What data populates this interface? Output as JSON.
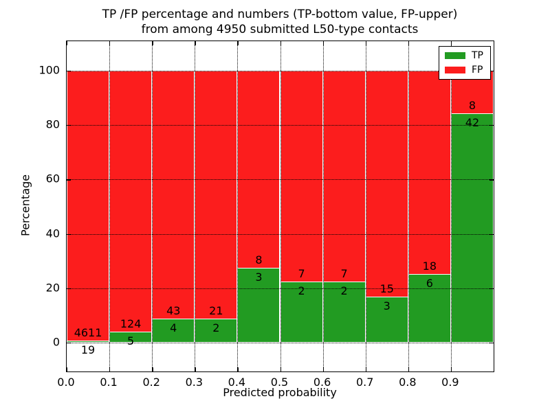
{
  "figure": {
    "title_line1": "TP /FP percentage and numbers (TP-bottom value, FP-upper)",
    "title_line2": "from among 4950 submitted L50-type contacts"
  },
  "chart_data": {
    "type": "bar",
    "stacked": true,
    "normalized_to": 100,
    "title": "TP /FP percentage and numbers (TP-bottom value, FP-upper) from among 4950 submitted L50-type contacts",
    "xlabel": "Predicted probability",
    "ylabel": "Percentage",
    "total_submitted": 4950,
    "bin_start": [
      0.0,
      0.1,
      0.2,
      0.3,
      0.4,
      0.5,
      0.6,
      0.7,
      0.8,
      0.9
    ],
    "bin_width": 0.1,
    "series": [
      {
        "name": "TP",
        "color": "#229b22",
        "counts": [
          19,
          5,
          4,
          2,
          3,
          2,
          2,
          3,
          6,
          42
        ]
      },
      {
        "name": "FP",
        "color": "#fc1d1d",
        "counts": [
          4611,
          124,
          43,
          21,
          8,
          7,
          7,
          15,
          18,
          8
        ]
      }
    ],
    "tp_percent_of_bin": [
      0.41,
      3.88,
      8.51,
      8.7,
      27.27,
      22.22,
      22.22,
      16.67,
      25.0,
      84.0
    ],
    "xticks": [
      "0.0",
      "0.1",
      "0.2",
      "0.3",
      "0.4",
      "0.5",
      "0.6",
      "0.7",
      "0.8",
      "0.9"
    ],
    "yticks": [
      "0",
      "20",
      "40",
      "60",
      "80",
      "100"
    ],
    "xlim": [
      0.0,
      1.0
    ],
    "ylim": [
      -10.6,
      110.8
    ],
    "grid": "dotted",
    "bar_edge_color": "#ffffff",
    "legend": {
      "position": "upper right",
      "entries": [
        {
          "label": "TP",
          "color": "#229b22"
        },
        {
          "label": "FP",
          "color": "#fc1d1d"
        }
      ]
    }
  }
}
